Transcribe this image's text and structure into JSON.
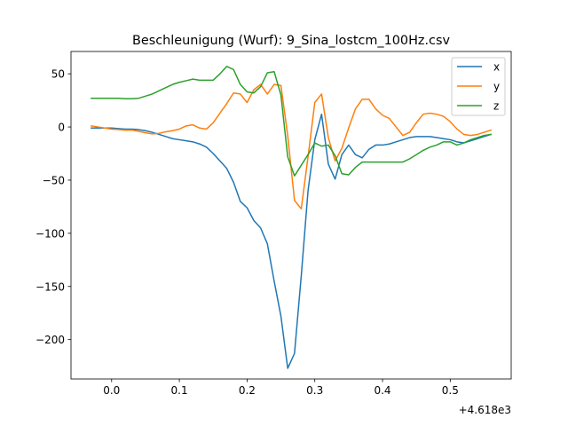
{
  "chart_data": {
    "type": "line",
    "title": "Beschleunigung (Wurf): 9_Sina_lostcm_100Hz.csv",
    "xlabel": "",
    "ylabel": "",
    "x_offset_text": "+4.618e3",
    "xlim": [
      -0.06,
      0.59
    ],
    "ylim": [
      -237,
      71
    ],
    "xticks": [
      0.0,
      0.1,
      0.2,
      0.3,
      0.4,
      0.5
    ],
    "xtick_labels": [
      "0.0",
      "0.1",
      "0.2",
      "0.3",
      "0.4",
      "0.5"
    ],
    "yticks": [
      50,
      0,
      -50,
      -100,
      -150,
      -200
    ],
    "ytick_labels": [
      "50",
      "0",
      "−50",
      "−100",
      "−150",
      "−200"
    ],
    "grid": false,
    "legend_position": "top-right",
    "x": [
      -0.03,
      -0.02,
      -0.01,
      0.0,
      0.01,
      0.02,
      0.03,
      0.04,
      0.05,
      0.06,
      0.07,
      0.08,
      0.09,
      0.1,
      0.11,
      0.12,
      0.13,
      0.14,
      0.15,
      0.16,
      0.17,
      0.18,
      0.19,
      0.2,
      0.21,
      0.22,
      0.23,
      0.24,
      0.25,
      0.26,
      0.27,
      0.28,
      0.29,
      0.3,
      0.31,
      0.32,
      0.33,
      0.34,
      0.35,
      0.36,
      0.37,
      0.38,
      0.39,
      0.4,
      0.41,
      0.42,
      0.43,
      0.44,
      0.45,
      0.46,
      0.47,
      0.48,
      0.49,
      0.5,
      0.51,
      0.52,
      0.53,
      0.54,
      0.55,
      0.56
    ],
    "series": [
      {
        "name": "x",
        "color": "#1f77b4",
        "values": [
          -1,
          -1,
          -1,
          -1,
          -1.5,
          -2,
          -2,
          -2.5,
          -3.5,
          -5,
          -7,
          -9,
          -11,
          -12,
          -13,
          -14,
          -16,
          -19,
          -25,
          -32,
          -39,
          -52,
          -70,
          -76,
          -88,
          -95,
          -110,
          -145,
          -178,
          -227,
          -213,
          -140,
          -60,
          -12,
          12,
          -35,
          -49,
          -26,
          -17,
          -26,
          -29,
          -21,
          -17,
          -17,
          -16,
          -14,
          -12,
          -10,
          -9,
          -9,
          -9,
          -10,
          -11,
          -12,
          -14,
          -15,
          -13,
          -11,
          -9,
          -7
        ]
      },
      {
        "name": "y",
        "color": "#ff7f0e",
        "values": [
          1,
          0,
          -1,
          -2,
          -2.5,
          -3,
          -3,
          -4,
          -5.5,
          -6.5,
          -6,
          -4.5,
          -3.5,
          -2,
          1,
          2,
          -1,
          -2,
          4,
          13,
          22,
          32,
          31,
          23,
          35,
          40,
          31,
          40,
          39,
          -8,
          -69,
          -77,
          -28,
          23,
          31,
          -10,
          -32,
          -20,
          -1,
          17,
          26,
          26,
          17,
          11,
          8,
          0,
          -8,
          -5,
          4,
          12,
          13,
          12,
          10,
          5,
          -2,
          -7,
          -8,
          -7,
          -5,
          -3
        ]
      },
      {
        "name": "z",
        "color": "#2ca02c",
        "values": [
          27,
          27,
          27,
          27,
          27,
          26.5,
          26.5,
          27,
          29,
          31,
          34,
          37,
          40,
          42,
          43.5,
          45,
          44,
          44,
          44,
          50,
          57,
          54,
          40,
          33,
          32,
          38,
          51,
          52,
          30,
          -28,
          -46,
          -36,
          -26,
          -15,
          -18,
          -17,
          -27,
          -44,
          -45,
          -38,
          -33,
          -33,
          -33,
          -33,
          -33,
          -33,
          -33,
          -30,
          -26,
          -22,
          -19,
          -17,
          -14,
          -14,
          -17,
          -15,
          -12,
          -10,
          -8,
          -7
        ]
      }
    ]
  }
}
